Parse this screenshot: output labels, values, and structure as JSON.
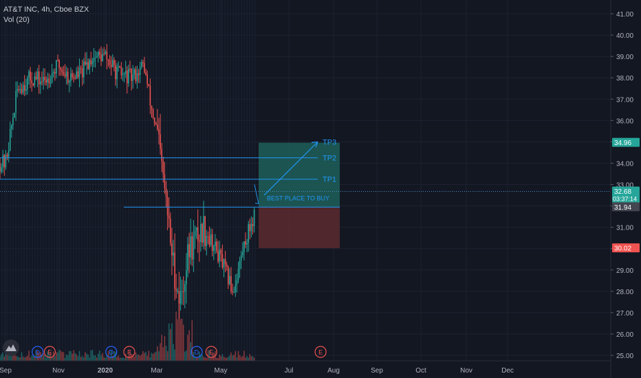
{
  "header": {
    "title": "AT&T INC, 4h, Cboe BZX",
    "indicator": "Vol (20)"
  },
  "colors": {
    "background": "#131722",
    "grid": "#1e2230",
    "axis_text": "#b2b5be",
    "up": "#26a69a",
    "down": "#ef5350",
    "annotation": "#2196f3",
    "target_zone": "#1f5f5a",
    "stop_zone": "#5a2a2f"
  },
  "chart_data": {
    "type": "candlestick",
    "symbol": "AT&T INC",
    "interval": "4h",
    "exchange": "Cboe BZX",
    "ylim": [
      24.8,
      41.4
    ],
    "y_ticks": [
      25.0,
      26.0,
      27.0,
      28.0,
      29.0,
      30.0,
      31.0,
      32.0,
      33.0,
      34.0,
      35.0,
      36.0,
      37.0,
      38.0,
      39.0,
      40.0,
      41.0
    ],
    "x_ticks": [
      "Sep",
      "Nov",
      "2020",
      "Mar",
      "May",
      "Jul",
      "Aug",
      "Sep",
      "Oct",
      "Nov",
      "Dec"
    ],
    "price_series_approx": [
      [
        "2019-09-01",
        34.0
      ],
      [
        "2019-09-15",
        37.5
      ],
      [
        "2019-10-01",
        38.0
      ],
      [
        "2019-10-15",
        37.8
      ],
      [
        "2019-11-01",
        38.6
      ],
      [
        "2019-11-15",
        38.0
      ],
      [
        "2019-12-01",
        38.2
      ],
      [
        "2019-12-15",
        39.0
      ],
      [
        "2020-01-01",
        39.0
      ],
      [
        "2020-01-15",
        38.2
      ],
      [
        "2020-02-01",
        38.0
      ],
      [
        "2020-02-15",
        38.6
      ],
      [
        "2020-02-24",
        36.5
      ],
      [
        "2020-03-01",
        35.5
      ],
      [
        "2020-03-09",
        32.5
      ],
      [
        "2020-03-16",
        29.5
      ],
      [
        "2020-03-23",
        27.5
      ],
      [
        "2020-04-01",
        30.0
      ],
      [
        "2020-04-15",
        31.0
      ],
      [
        "2020-05-01",
        29.5
      ],
      [
        "2020-05-12",
        28.0
      ],
      [
        "2020-05-22",
        30.2
      ],
      [
        "2020-06-01",
        31.8
      ],
      [
        "2020-06-08",
        33.1
      ],
      [
        "2020-06-12",
        32.0
      ]
    ],
    "price_labels": [
      {
        "value": 34.96,
        "text": "34.96",
        "style": "target"
      },
      {
        "value": 32.68,
        "text": "32.68",
        "style": "current",
        "countdown": "03:37:14"
      },
      {
        "value": 31.94,
        "text": "31.94",
        "style": "entry"
      },
      {
        "value": 30.02,
        "text": "30.02",
        "style": "stop"
      }
    ],
    "annotations": [
      {
        "label": "TP3",
        "price": 35.0
      },
      {
        "label": "TP2",
        "price": 34.25
      },
      {
        "label": "TP1",
        "price": 33.25
      },
      {
        "label": "BEST PLACE TO BUY",
        "price": 32.35
      }
    ],
    "long_position": {
      "entry": 31.94,
      "target": 34.96,
      "stop": 30.02
    },
    "event_markers": [
      {
        "type": "D",
        "date": "2019-10-08"
      },
      {
        "type": "E",
        "date": "2019-10-22"
      },
      {
        "type": "D",
        "date": "2020-01-08"
      },
      {
        "type": "E",
        "date": "2020-01-29"
      },
      {
        "type": "D",
        "date": "2020-04-08"
      },
      {
        "type": "E",
        "date": "2020-04-22"
      },
      {
        "type": "E",
        "date": "2020-07-23"
      }
    ]
  }
}
